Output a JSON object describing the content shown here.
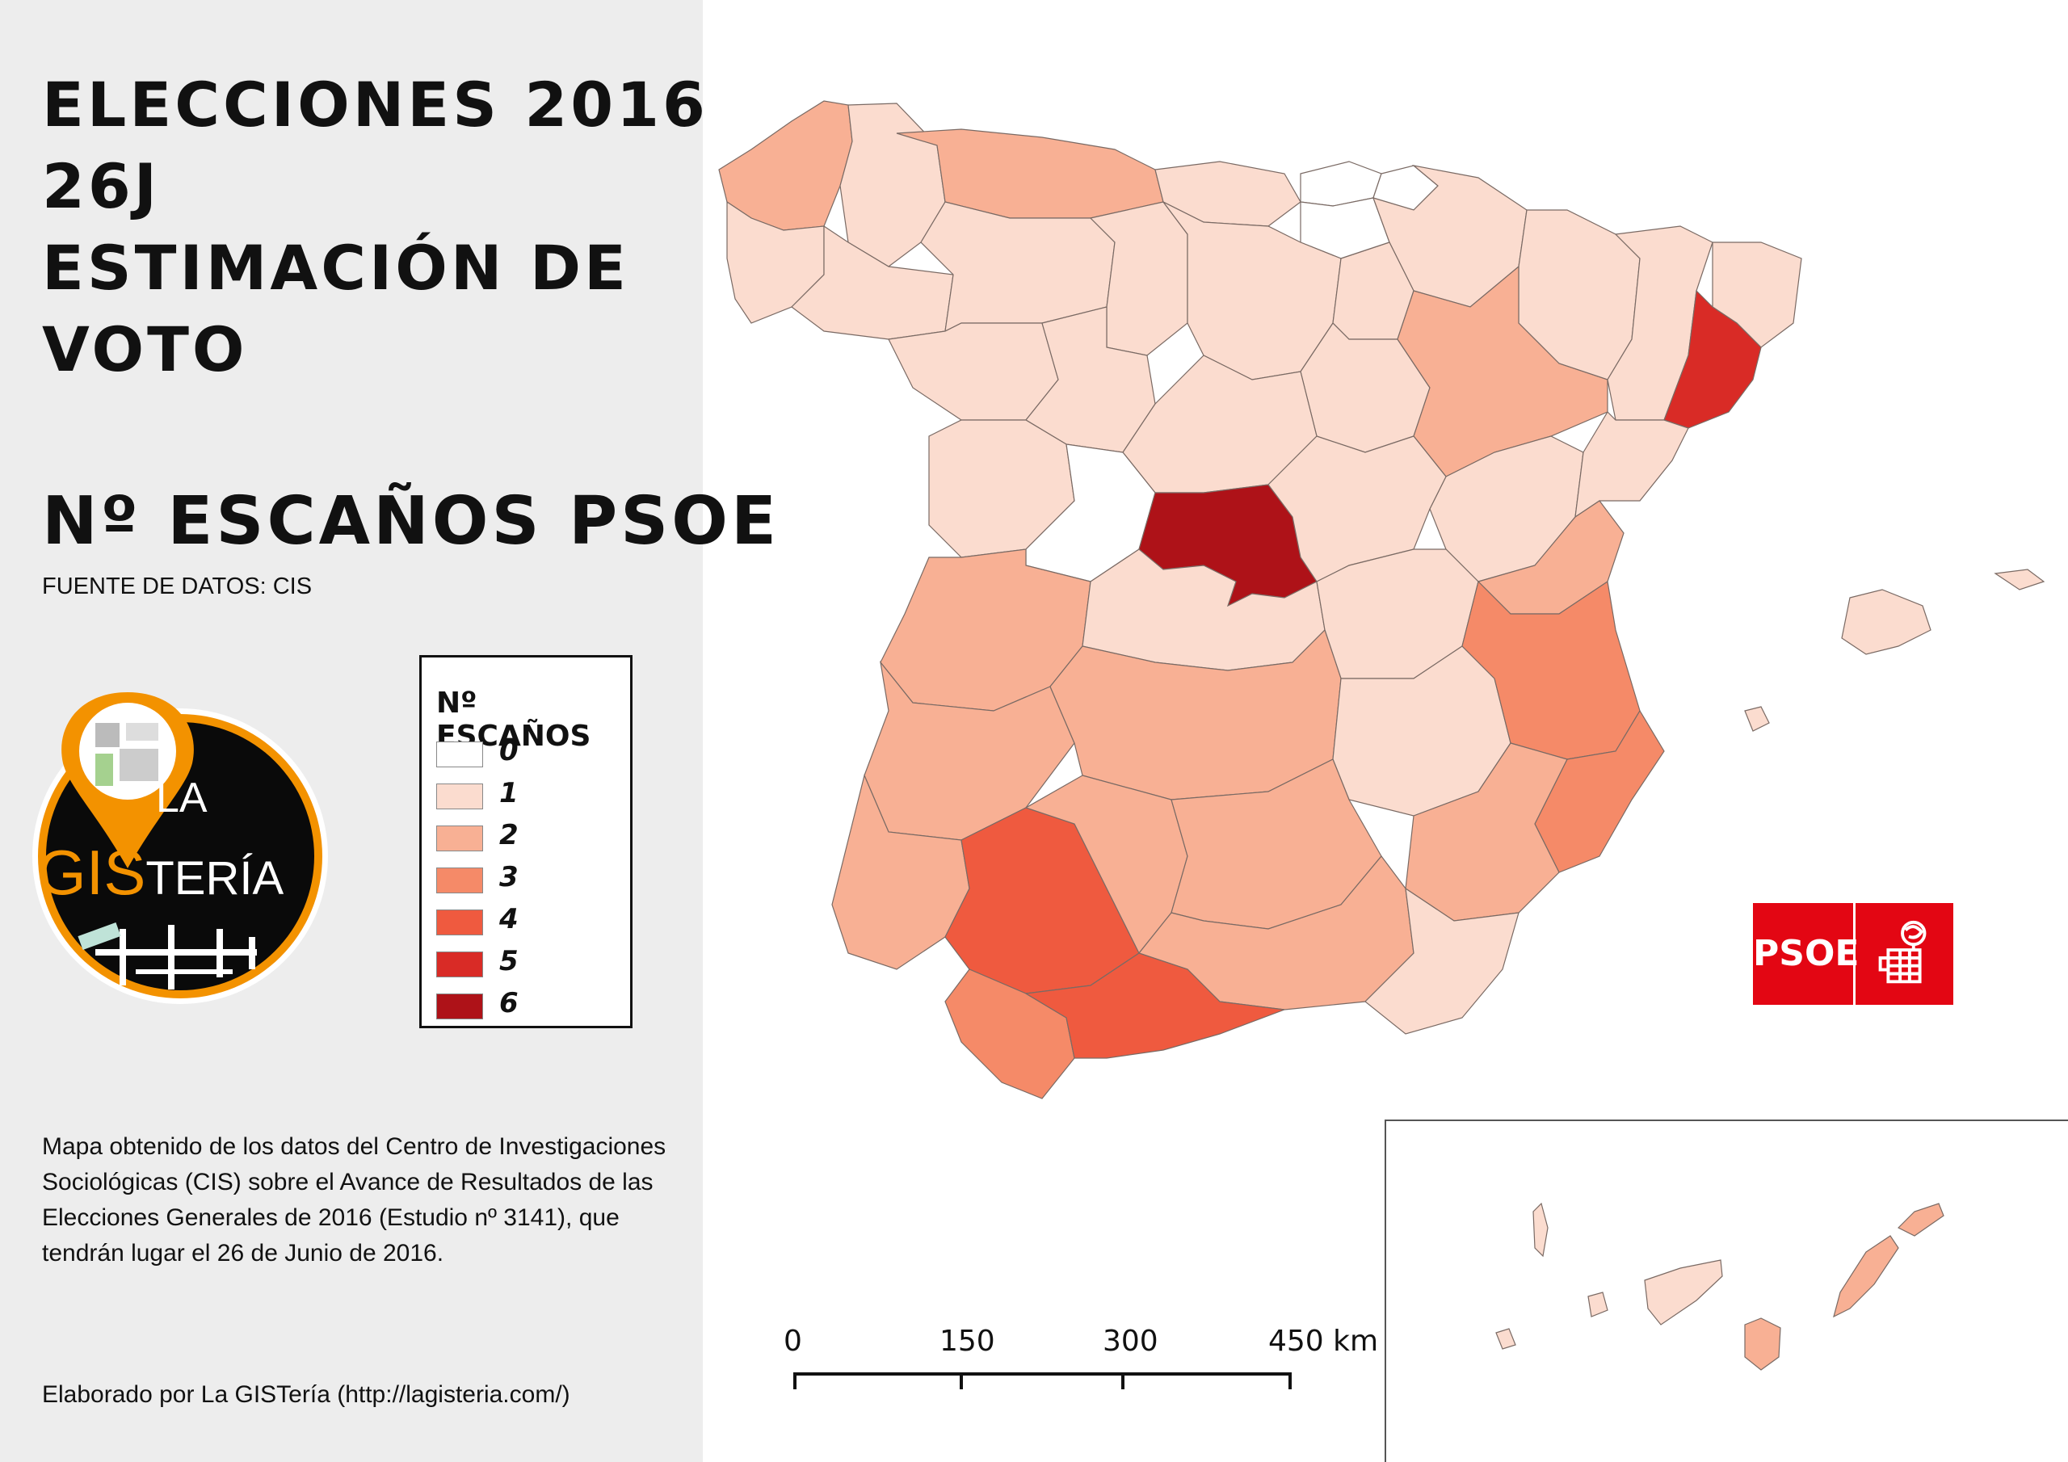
{
  "title": {
    "lines": [
      "ELECCIONES 2016",
      "26J",
      "ESTIMACIÓN DE",
      "VOTO"
    ]
  },
  "subtitle": "Nº ESCAÑOS PSOE",
  "source": "FUENTE DE DATOS: CIS",
  "logo": {
    "line1": "LA",
    "gis": "GIS",
    "rest": "TERÍA",
    "accent_color": "#f39200"
  },
  "legend": {
    "title": "Nº ESCAÑOS",
    "items": [
      {
        "label": "0",
        "color": "#ffffff"
      },
      {
        "label": "1",
        "color": "#fbdccf"
      },
      {
        "label": "2",
        "color": "#f8b094"
      },
      {
        "label": "3",
        "color": "#f58a68"
      },
      {
        "label": "4",
        "color": "#ef5a3f"
      },
      {
        "label": "5",
        "color": "#d92b26"
      },
      {
        "label": "6",
        "color": "#ae1218"
      }
    ]
  },
  "description": "Mapa obtenido de los datos del Centro de Investigaciones Sociológicas (CIS) sobre el Avance de Resultados de las Elecciones Generales de 2016 (Estudio nº 3141), que tendrán lugar el 26 de Junio de 2016.",
  "credits": "Elaborado por La GISTería (http://lagisteria.com/)",
  "scale_bar": {
    "labels": [
      "0",
      "150",
      "300",
      "450 km"
    ]
  },
  "party_logo": {
    "text": "PSOE",
    "color": "#e30613"
  }
}
